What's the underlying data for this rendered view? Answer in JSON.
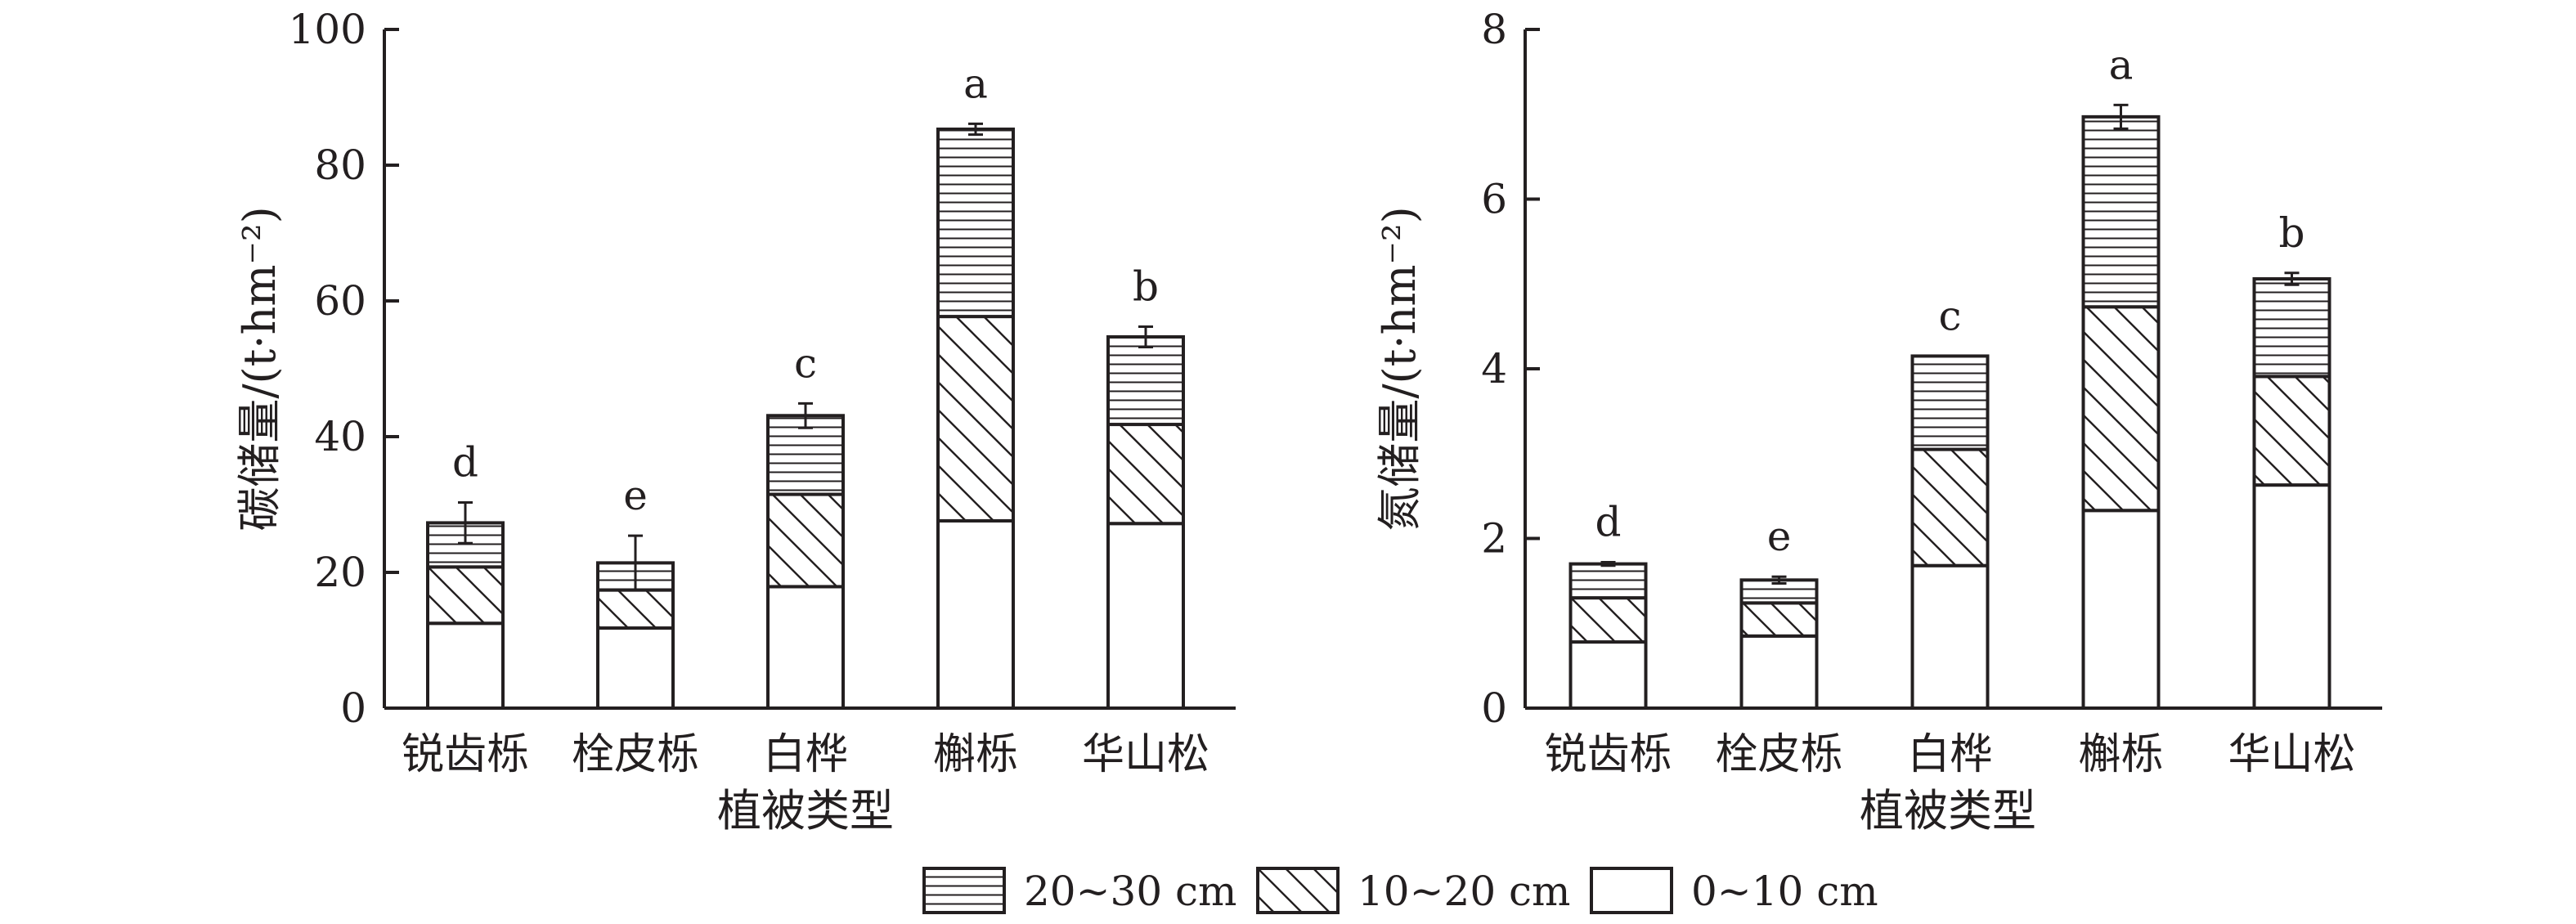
{
  "legend": [
    {
      "key": "l20_30",
      "label": "20~30 cm",
      "pattern": "horizontal-lines"
    },
    {
      "key": "l10_20",
      "label": "10~20 cm",
      "pattern": "diagonal-lines"
    },
    {
      "key": "l0_10",
      "label": "0~10 cm",
      "pattern": "blank"
    }
  ],
  "chart_data": [
    {
      "type": "bar",
      "stacked": true,
      "xlabel": "植被类型",
      "ylabel": "碳储量/(t·hm⁻²)",
      "ylim": [
        0,
        100
      ],
      "yticks": [
        0,
        20,
        40,
        60,
        80,
        100
      ],
      "categories": [
        "锐齿栎",
        "栓皮栎",
        "白桦",
        "槲栎",
        "华山松"
      ],
      "significance": [
        "d",
        "e",
        "c",
        "a",
        "b"
      ],
      "series": [
        {
          "name": "0~10 cm",
          "values": [
            12.5,
            11.8,
            17.9,
            27.6,
            27.2
          ]
        },
        {
          "name": "10~20 cm",
          "values": [
            8.3,
            5.6,
            13.6,
            30.1,
            14.6
          ]
        },
        {
          "name": "20~30 cm",
          "values": [
            6.5,
            4.0,
            11.6,
            27.6,
            12.9
          ]
        }
      ],
      "error": [
        3.0,
        4.0,
        1.8,
        0.8,
        1.5
      ],
      "grid": false
    },
    {
      "type": "bar",
      "stacked": true,
      "xlabel": "植被类型",
      "ylabel": "氮储量/(t·hm⁻²)",
      "ylim": [
        0,
        8
      ],
      "yticks": [
        0,
        2,
        4,
        6,
        8
      ],
      "categories": [
        "锐齿栎",
        "栓皮栎",
        "白桦",
        "槲栎",
        "华山松"
      ],
      "significance": [
        "d",
        "e",
        "c",
        "a",
        "b"
      ],
      "series": [
        {
          "name": "0~10 cm",
          "values": [
            0.78,
            0.85,
            1.68,
            2.33,
            2.63
          ]
        },
        {
          "name": "10~20 cm",
          "values": [
            0.52,
            0.39,
            1.37,
            2.4,
            1.28
          ]
        },
        {
          "name": "20~30 cm",
          "values": [
            0.4,
            0.27,
            1.1,
            2.24,
            1.15
          ]
        }
      ],
      "error": [
        0.02,
        0.04,
        0.0,
        0.14,
        0.07
      ],
      "grid": false
    }
  ]
}
